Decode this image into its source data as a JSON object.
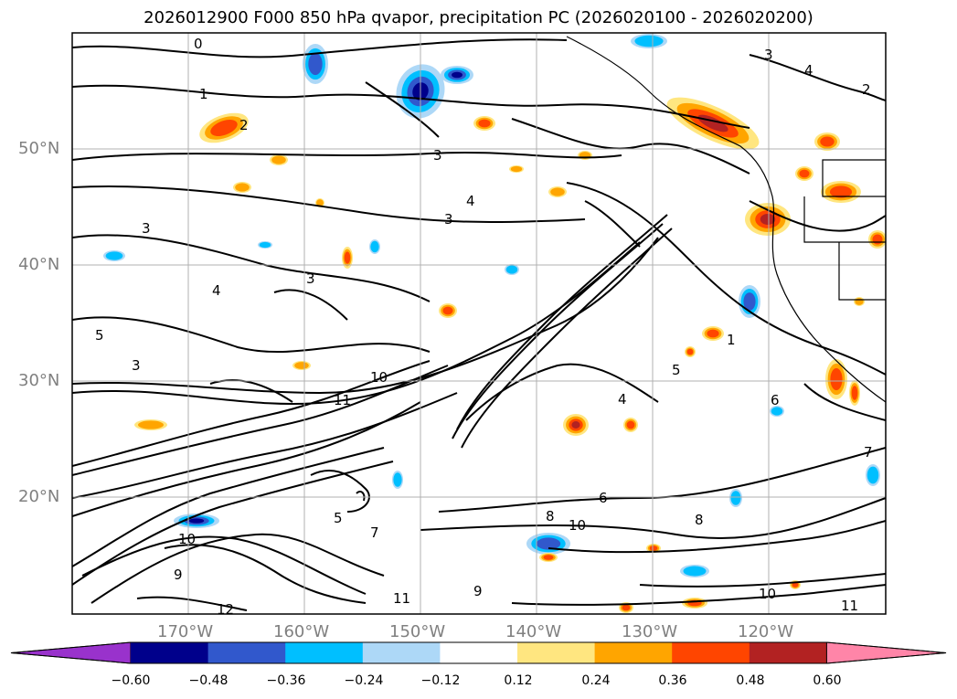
{
  "title": "2026012900 F000 850 hPa qvapor, precipitation PC (2026020100 - 2026020200)",
  "map": {
    "lat_labels": [
      "50°N",
      "40°N",
      "30°N",
      "20°N"
    ],
    "lon_labels": [
      "170°W",
      "160°W",
      "150°W",
      "140°W",
      "130°W",
      "120°W"
    ],
    "contour_labels": [
      "0",
      "1",
      "2",
      "3",
      "3",
      "3",
      "4",
      "3",
      "4",
      "5",
      "3",
      "10",
      "11",
      "4",
      "5",
      "6",
      "7",
      "8",
      "10",
      "11",
      "12",
      "9",
      "10",
      "1",
      "2",
      "3",
      "4",
      "5",
      "6",
      "7",
      "8",
      "9",
      "10",
      "11"
    ]
  },
  "colorbar": {
    "ticks": [
      "−0.60",
      "−0.48",
      "−0.36",
      "−0.24",
      "−0.12",
      "0.12",
      "0.24",
      "0.36",
      "0.48",
      "0.60"
    ],
    "colors": [
      "#9932cc",
      "#00008b",
      "#3158cc",
      "#00bfff",
      "#add8f7",
      "#ffffff",
      "#ffe680",
      "#ffa500",
      "#ff4500",
      "#b22222",
      "#ff85a8"
    ]
  },
  "palette": {
    "warm": [
      "#ffe680",
      "#ffa500",
      "#ff4500",
      "#b22222"
    ],
    "cool": [
      "#add8f7",
      "#00bfff",
      "#3158cc",
      "#00008b"
    ],
    "grid": "#b0b0b0",
    "contour": "#000000"
  }
}
